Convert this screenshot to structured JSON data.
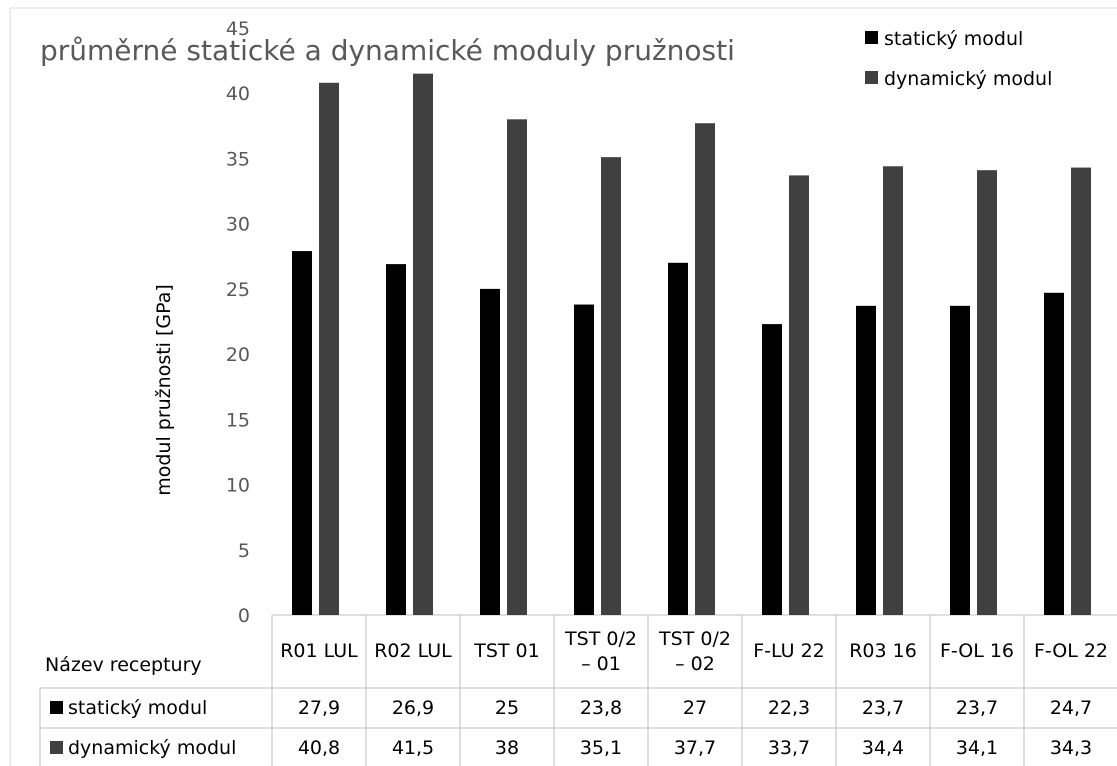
{
  "chart_data": {
    "type": "bar",
    "title": "průměrné statické a dynamické moduly pružnosti",
    "y_label": "modul pružnosti [GPa]",
    "table_header": "Název receptury",
    "categories": [
      "R01 LUL",
      "R02 LUL",
      "TST 01",
      "TST 0/2\n– 01",
      "TST 0/2\n– 02",
      "F-LU 22",
      "R03 16",
      "F-OL 16",
      "F-OL 22"
    ],
    "series": [
      {
        "name": "statický modul",
        "color": "#000000",
        "values": [
          27.9,
          26.9,
          25,
          23.8,
          27,
          22.3,
          23.7,
          23.7,
          24.7
        ],
        "value_labels": [
          "27,9",
          "26,9",
          "25",
          "23,8",
          "27",
          "22,3",
          "23,7",
          "23,7",
          "24,7"
        ]
      },
      {
        "name": "dynamický modul",
        "color": "#404040",
        "values": [
          40.8,
          41.5,
          38,
          35.1,
          37.7,
          33.7,
          34.4,
          34.1,
          34.3
        ],
        "value_labels": [
          "40,8",
          "41,5",
          "38",
          "35,1",
          "37,7",
          "33,7",
          "34,4",
          "34,1",
          "34,3"
        ]
      }
    ],
    "ylim": [
      0,
      45
    ],
    "yticks": [
      0,
      5,
      10,
      15,
      20,
      25,
      30,
      35,
      40,
      45
    ],
    "grid": false,
    "legend": "top-right"
  }
}
